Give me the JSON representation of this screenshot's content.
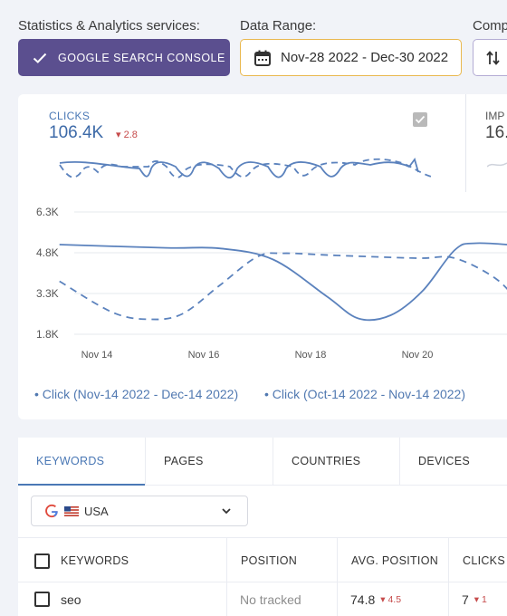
{
  "controls": {
    "services_label": "Statistics & Analytics services:",
    "service_button": "GOOGLE SEARCH CONSOLE",
    "date_label": "Data Range:",
    "date_value": "Nov-28 2022 - Dec-30 2022",
    "compare_label": "Comp"
  },
  "metrics": {
    "clicks": {
      "label": "CLICKS",
      "value": "106.4K",
      "delta": "2.8"
    },
    "impressions": {
      "label": "IMP",
      "value": "16."
    }
  },
  "chart_data": {
    "type": "line",
    "x_ticks": [
      "Nov 14",
      "Nov 16",
      "Nov 18",
      "Nov 20"
    ],
    "y_ticks": [
      "6.3K",
      "4.8K",
      "3.3K",
      "1.8K"
    ],
    "ylim": [
      1800,
      6300
    ],
    "series": [
      {
        "name": "Click (Nov-14 2022 - Dec-14 2022)",
        "style": "solid",
        "color": "#5b82bd",
        "points": [
          [
            13.3,
            5100
          ],
          [
            15.3,
            4980
          ],
          [
            16.3,
            4960
          ],
          [
            17.3,
            4550
          ],
          [
            18.3,
            3200
          ],
          [
            18.9,
            2380
          ],
          [
            19.5,
            2500
          ],
          [
            20.1,
            3400
          ],
          [
            20.7,
            4900
          ],
          [
            21.1,
            5150
          ],
          [
            22.0,
            5050
          ]
        ]
      },
      {
        "name": "Click (Oct-14 2022 - Nov-14 2022)",
        "style": "dashed",
        "color": "#5b82bd",
        "points": [
          [
            13.3,
            3750
          ],
          [
            14.3,
            2600
          ],
          [
            15.0,
            2350
          ],
          [
            15.6,
            2550
          ],
          [
            16.3,
            3600
          ],
          [
            17.0,
            4650
          ],
          [
            17.5,
            4780
          ],
          [
            18.5,
            4700
          ],
          [
            20.0,
            4600
          ],
          [
            20.7,
            4600
          ],
          [
            21.5,
            3800
          ],
          [
            22.0,
            2700
          ]
        ]
      }
    ]
  },
  "tabs": [
    "KEYWORDS",
    "PAGES",
    "COUNTRIES",
    "DEVICES"
  ],
  "filter": {
    "country": "USA"
  },
  "table": {
    "columns": [
      "KEYWORDS",
      "POSITION",
      "AVG. POSITION",
      "CLICKS"
    ],
    "rows": [
      {
        "keyword": "seo",
        "position": "No tracked",
        "avg_position": "74.8",
        "avg_delta": "4.5",
        "clicks": "7",
        "clicks_delta": "1"
      }
    ]
  }
}
